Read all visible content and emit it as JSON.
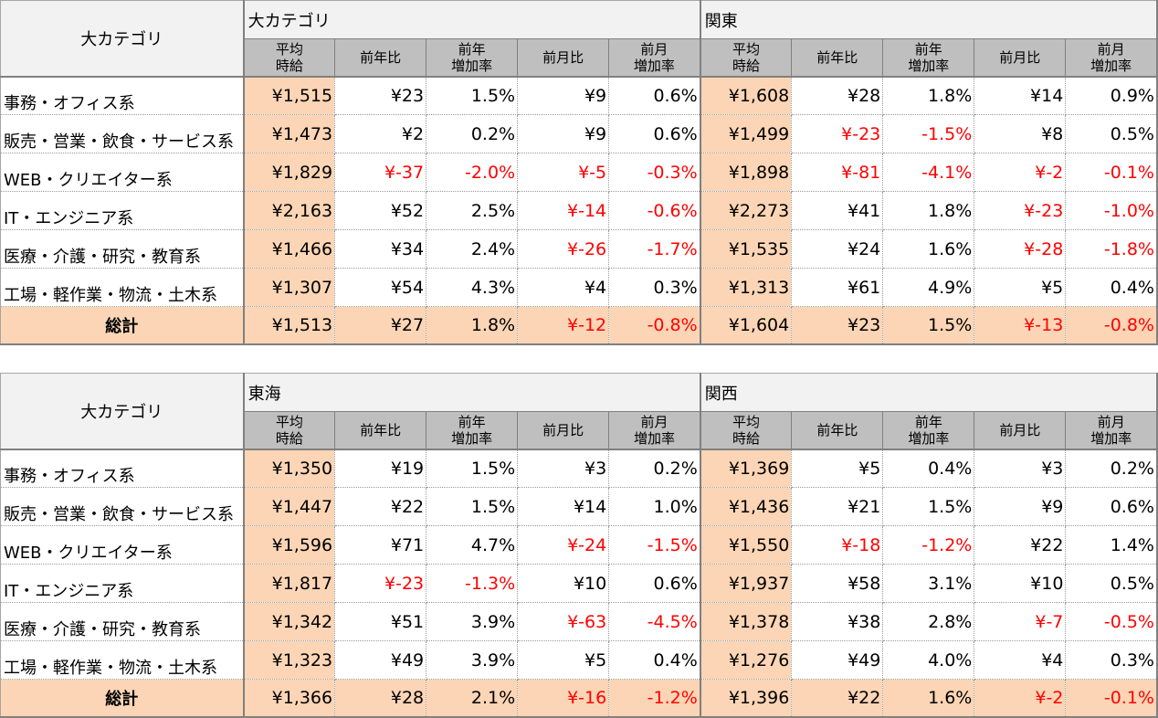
{
  "tables": [
    {
      "category_header": "大カテゴリ",
      "columns": [
        [
          "平均",
          "時給"
        ],
        [
          "前年比"
        ],
        [
          "前年",
          "増加率"
        ],
        [
          "前月比"
        ],
        [
          "前月",
          "増加率"
        ]
      ],
      "regions": [
        {
          "name": "大カテゴリ"
        },
        {
          "name": "関東"
        }
      ],
      "rows": [
        {
          "label": "事務・オフィス系",
          "values": [
            "¥1,515",
            "¥23",
            "1.5%",
            "¥9",
            "0.6%",
            "¥1,608",
            "¥28",
            "1.8%",
            "¥14",
            "0.9%"
          ]
        },
        {
          "label": "販売・営業・飲食・サービス系",
          "values": [
            "¥1,473",
            "¥2",
            "0.2%",
            "¥9",
            "0.6%",
            "¥1,499",
            "¥-23",
            "-1.5%",
            "¥8",
            "0.5%"
          ]
        },
        {
          "label": "WEB・クリエイター系",
          "values": [
            "¥1,829",
            "¥-37",
            "-2.0%",
            "¥-5",
            "-0.3%",
            "¥1,898",
            "¥-81",
            "-4.1%",
            "¥-2",
            "-0.1%"
          ]
        },
        {
          "label": "IT・エンジニア系",
          "values": [
            "¥2,163",
            "¥52",
            "2.5%",
            "¥-14",
            "-0.6%",
            "¥2,273",
            "¥41",
            "1.8%",
            "¥-23",
            "-1.0%"
          ]
        },
        {
          "label": "医療・介護・研究・教育系",
          "values": [
            "¥1,466",
            "¥34",
            "2.4%",
            "¥-26",
            "-1.7%",
            "¥1,535",
            "¥24",
            "1.6%",
            "¥-28",
            "-1.8%"
          ]
        },
        {
          "label": "工場・軽作業・物流・土木系",
          "values": [
            "¥1,307",
            "¥54",
            "4.3%",
            "¥4",
            "0.3%",
            "¥1,313",
            "¥61",
            "4.9%",
            "¥5",
            "0.4%"
          ]
        }
      ],
      "total": {
        "label": "総計",
        "values": [
          "¥1,513",
          "¥27",
          "1.8%",
          "¥-12",
          "-0.8%",
          "¥1,604",
          "¥23",
          "1.5%",
          "¥-13",
          "-0.8%"
        ]
      }
    },
    {
      "category_header": "大カテゴリ",
      "columns": [
        [
          "平均",
          "時給"
        ],
        [
          "前年比"
        ],
        [
          "前年",
          "増加率"
        ],
        [
          "前月比"
        ],
        [
          "前月",
          "増加率"
        ]
      ],
      "regions": [
        {
          "name": "東海"
        },
        {
          "name": "関西"
        }
      ],
      "rows": [
        {
          "label": "事務・オフィス系",
          "values": [
            "¥1,350",
            "¥19",
            "1.5%",
            "¥3",
            "0.2%",
            "¥1,369",
            "¥5",
            "0.4%",
            "¥3",
            "0.2%"
          ]
        },
        {
          "label": "販売・営業・飲食・サービス系",
          "values": [
            "¥1,447",
            "¥22",
            "1.5%",
            "¥14",
            "1.0%",
            "¥1,436",
            "¥21",
            "1.5%",
            "¥9",
            "0.6%"
          ]
        },
        {
          "label": "WEB・クリエイター系",
          "values": [
            "¥1,596",
            "¥71",
            "4.7%",
            "¥-24",
            "-1.5%",
            "¥1,550",
            "¥-18",
            "-1.2%",
            "¥22",
            "1.4%"
          ]
        },
        {
          "label": "IT・エンジニア系",
          "values": [
            "¥1,817",
            "¥-23",
            "-1.3%",
            "¥10",
            "0.6%",
            "¥1,937",
            "¥58",
            "3.1%",
            "¥10",
            "0.5%"
          ]
        },
        {
          "label": "医療・介護・研究・教育系",
          "values": [
            "¥1,342",
            "¥51",
            "3.9%",
            "¥-63",
            "-4.5%",
            "¥1,378",
            "¥38",
            "2.8%",
            "¥-7",
            "-0.5%"
          ]
        },
        {
          "label": "工場・軽作業・物流・土木系",
          "values": [
            "¥1,323",
            "¥49",
            "3.9%",
            "¥5",
            "0.4%",
            "¥1,276",
            "¥49",
            "4.0%",
            "¥4",
            "0.3%"
          ]
        }
      ],
      "total": {
        "label": "総計",
        "values": [
          "¥1,366",
          "¥28",
          "2.1%",
          "¥-16",
          "-1.2%",
          "¥1,396",
          "¥22",
          "1.6%",
          "¥-2",
          "-0.1%"
        ]
      }
    }
  ],
  "colors": {
    "negative": "#ff0000",
    "highlight": "#fbd5b5",
    "header_gray": "#bfbfbf"
  }
}
